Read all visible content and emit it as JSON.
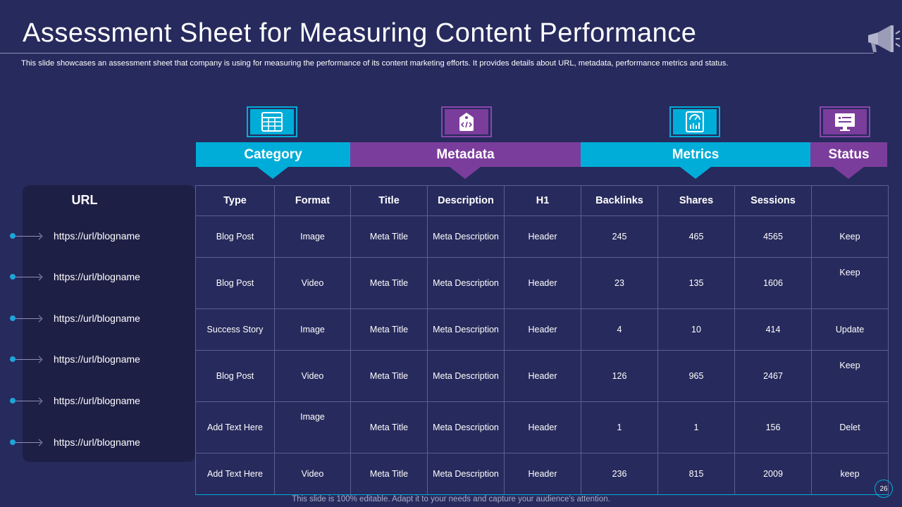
{
  "slide": {
    "title": "Assessment Sheet for Measuring Content Performance",
    "subtitle": "This slide showcases an assessment sheet that company is using for measuring the performance of its content marketing efforts. It provides details about URL, metadata, performance metrics and status.",
    "footer": "This slide is 100% editable. Adapt it to your needs and capture your audience's attention.",
    "page_number": "26",
    "icon": "megaphone-icon"
  },
  "colors": {
    "background": "#272a5c",
    "cyan": "#00add8",
    "purple": "#7b3d9c",
    "panel": "#1e1f45"
  },
  "groups": [
    {
      "label": "Category",
      "icon": "table-grid-icon"
    },
    {
      "label": "Metadata",
      "icon": "code-tag-icon"
    },
    {
      "label": "Metrics",
      "icon": "analytics-screen-icon"
    },
    {
      "label": "Status",
      "icon": "monitor-icon"
    }
  ],
  "url_panel": {
    "header": "URL",
    "urls": [
      "https://url/blogname",
      "https://url/blogname",
      "https://url/blogname",
      "https://url/blogname",
      "https://url/blogname",
      "https://url/blogname"
    ]
  },
  "table": {
    "columns": [
      "Type",
      "Format",
      "Title",
      "Description",
      "H1",
      "Backlinks",
      "Shares",
      "Sessions",
      ""
    ],
    "rows": [
      [
        "Blog Post",
        "Image",
        "Meta Title",
        "Meta Description",
        "Header",
        "245",
        "465",
        "4565",
        "Keep"
      ],
      [
        "Blog Post",
        "Video",
        "Meta Title",
        "Meta Description",
        "Header",
        "23",
        "135",
        "1606",
        "Keep"
      ],
      [
        "Success Story",
        "Image",
        "Meta Title",
        "Meta Description",
        "Header",
        "4",
        "10",
        "414",
        "Update"
      ],
      [
        "Blog Post",
        "Video",
        "Meta Title",
        "Meta Description",
        "Header",
        "126",
        "965",
        "2467",
        "Keep"
      ],
      [
        "Add Text Here",
        "Image",
        "Meta Title",
        "Meta Description",
        "Header",
        "1",
        "1",
        "156",
        "Delet"
      ],
      [
        "Add Text Here",
        "Video",
        "Meta Title",
        "Meta Description",
        "Header",
        "236",
        "815",
        "2009",
        "keep"
      ]
    ]
  }
}
